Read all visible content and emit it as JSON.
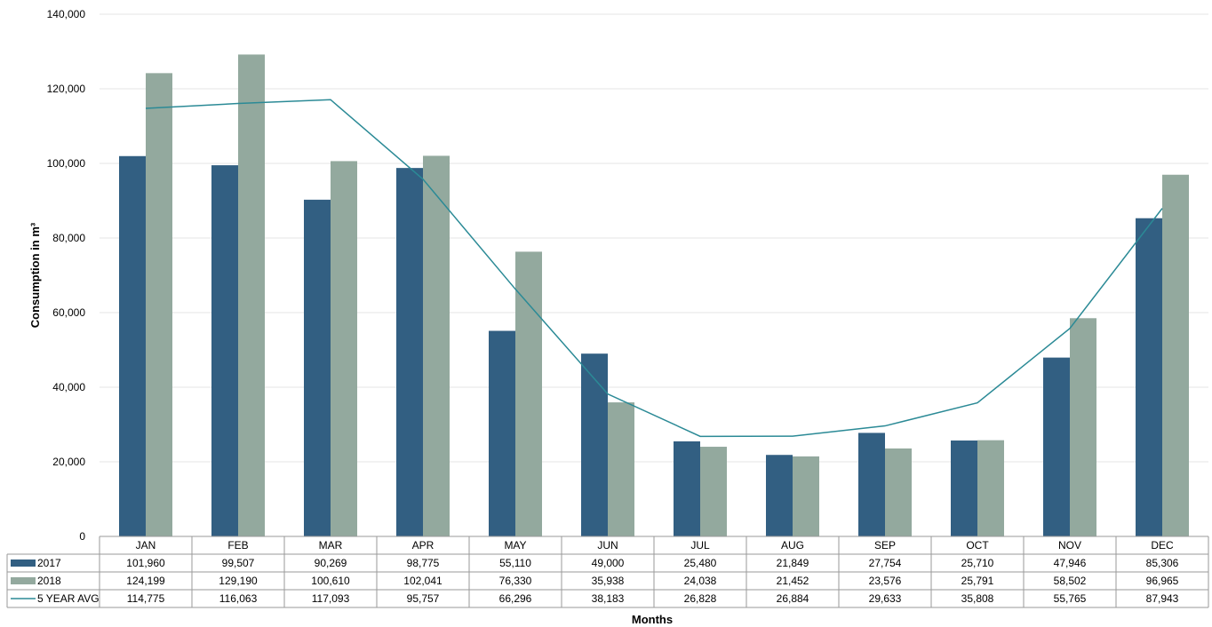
{
  "chart_data": {
    "type": "bar",
    "title": "",
    "xlabel": "Months",
    "ylabel": "Consumption in m³",
    "ylim": [
      0,
      140000
    ],
    "yticks": [
      0,
      20000,
      40000,
      60000,
      80000,
      100000,
      120000,
      140000
    ],
    "ytick_labels": [
      "0",
      "20,000",
      "40,000",
      "60,000",
      "80,000",
      "100,000",
      "120,000",
      "140,000"
    ],
    "grid": true,
    "legend": "data table below chart",
    "categories": [
      "JAN",
      "FEB",
      "MAR",
      "APR",
      "MAY",
      "JUN",
      "JUL",
      "AUG",
      "SEP",
      "OCT",
      "NOV",
      "DEC"
    ],
    "series": [
      {
        "name": "2017",
        "type": "bar",
        "color": "#325f82",
        "values": [
          101960,
          99507,
          90269,
          98775,
          55110,
          49000,
          25480,
          21849,
          27754,
          25710,
          47946,
          85306
        ],
        "labels": [
          "101,960",
          "99,507",
          "90,269",
          "98,775",
          "55,110",
          "49,000",
          "25,480",
          "21,849",
          "27,754",
          "25,710",
          "47,946",
          "85,306"
        ]
      },
      {
        "name": "2018",
        "type": "bar",
        "color": "#93a99e",
        "values": [
          124199,
          129190,
          100610,
          102041,
          76330,
          35938,
          24038,
          21452,
          23576,
          25791,
          58502,
          96965
        ],
        "labels": [
          "124,199",
          "129,190",
          "100,610",
          "102,041",
          "76,330",
          "35,938",
          "24,038",
          "21,452",
          "23,576",
          "25,791",
          "58,502",
          "96,965"
        ]
      },
      {
        "name": "5 YEAR AVG",
        "type": "line",
        "color": "#2b8a96",
        "values": [
          114775,
          116063,
          117093,
          95757,
          66296,
          38183,
          26828,
          26884,
          29633,
          35808,
          55765,
          87943
        ],
        "labels": [
          "114,775",
          "116,063",
          "117,093",
          "95,757",
          "66,296",
          "38,183",
          "26,828",
          "26,884",
          "29,633",
          "35,808",
          "55,765",
          "87,943"
        ]
      }
    ]
  }
}
